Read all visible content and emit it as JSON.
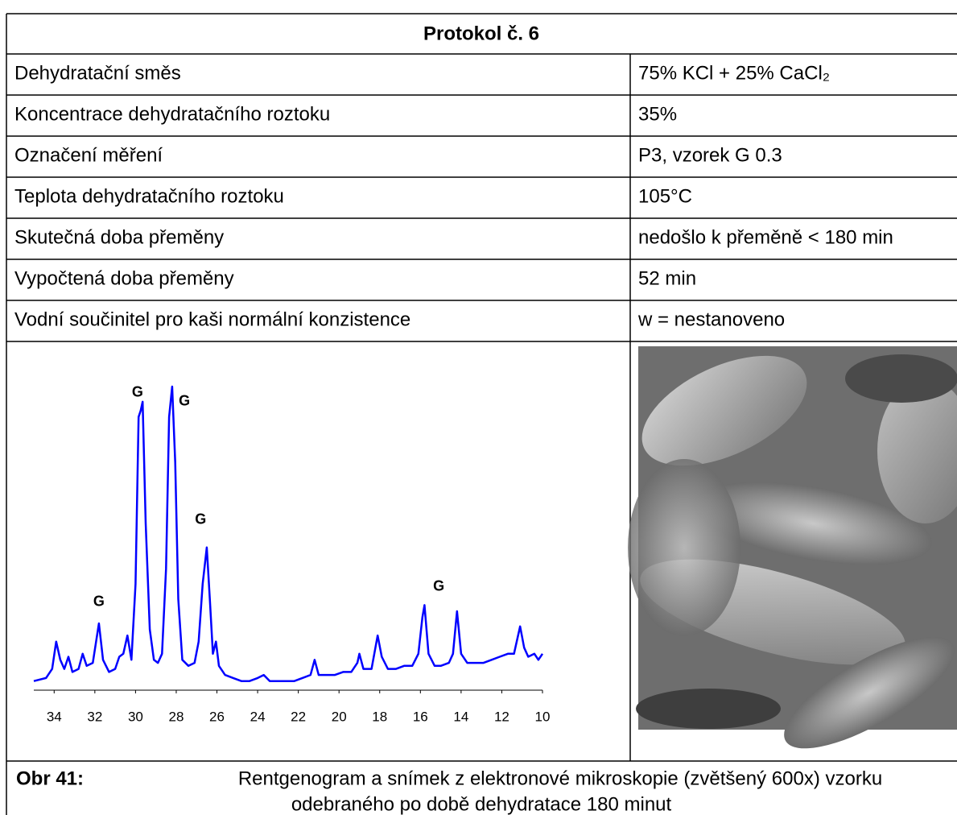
{
  "header": {
    "title": "Protokol č. 6"
  },
  "table": {
    "rows": [
      [
        "Dehydratační směs",
        "75% KCl + 25% CaCl₂"
      ],
      [
        "Koncentrace dehydratačního roztoku",
        "35%"
      ],
      [
        "Označení měření",
        "P3, vzorek G 0.3"
      ],
      [
        "Teplota dehydratačního roztoku",
        "105°C"
      ],
      [
        "Skutečná doba přeměny",
        "nedošlo k přeměně < 180 min"
      ],
      [
        "Vypočtená doba přeměny",
        "52 min"
      ],
      [
        "Vodní součinitel pro kaši normální konzistence",
        "w = nestanoveno"
      ]
    ]
  },
  "chart": {
    "type": "line",
    "color": "#0000ff",
    "x": [
      35.0,
      34.4,
      34.1,
      33.9,
      33.7,
      33.5,
      33.3,
      33.1,
      32.8,
      32.6,
      32.4,
      32.1,
      31.8,
      31.6,
      31.3,
      31.0,
      30.8,
      30.6,
      30.4,
      30.2,
      30.0,
      29.85,
      29.75,
      29.65,
      29.5,
      29.3,
      29.1,
      28.9,
      28.7,
      28.5,
      28.35,
      28.2,
      28.05,
      27.9,
      27.7,
      27.4,
      27.1,
      26.9,
      26.7,
      26.5,
      26.35,
      26.2,
      26.05,
      25.9,
      25.6,
      25.2,
      24.8,
      24.4,
      24.0,
      23.7,
      23.4,
      23.0,
      22.6,
      22.2,
      21.8,
      21.4,
      21.2,
      21.0,
      20.6,
      20.2,
      19.8,
      19.4,
      19.1,
      19.0,
      18.8,
      18.4,
      18.1,
      17.9,
      17.6,
      17.2,
      16.8,
      16.4,
      16.1,
      15.9,
      15.8,
      15.6,
      15.3,
      15.0,
      14.6,
      14.4,
      14.2,
      14.0,
      13.7,
      13.3,
      12.9,
      12.5,
      12.1,
      11.7,
      11.4,
      11.1,
      10.9,
      10.7,
      10.4,
      10.2,
      10.0
    ],
    "values": [
      3,
      4,
      7,
      16,
      10,
      7,
      11,
      6,
      7,
      12,
      8,
      9,
      22,
      10,
      6,
      7,
      11,
      12,
      18,
      10,
      35,
      90,
      92,
      95,
      55,
      20,
      10,
      9,
      12,
      40,
      90,
      100,
      75,
      30,
      10,
      8,
      9,
      16,
      35,
      47,
      30,
      12,
      16,
      8,
      5,
      4,
      3,
      3,
      4,
      5,
      3,
      3,
      3,
      3,
      4,
      5,
      10,
      5,
      5,
      5,
      6,
      6,
      9,
      12,
      7,
      7,
      18,
      11,
      7,
      7,
      8,
      8,
      12,
      24,
      28,
      12,
      8,
      8,
      9,
      12,
      26,
      12,
      9,
      9,
      9,
      10,
      11,
      12,
      12,
      21,
      14,
      11,
      12,
      10,
      12
    ],
    "xlim": [
      35,
      10
    ],
    "ylim": [
      0,
      100
    ],
    "xticks": [
      34,
      32,
      30,
      28,
      26,
      24,
      22,
      20,
      18,
      16,
      14,
      12,
      10
    ],
    "annotations": [
      {
        "text": "G",
        "x": 31.8,
        "y": 29
      },
      {
        "text": "G",
        "x": 29.9,
        "y": 98
      },
      {
        "text": "G",
        "x": 27.6,
        "y": 95
      },
      {
        "text": "G",
        "x": 26.8,
        "y": 56
      },
      {
        "text": "G",
        "x": 15.1,
        "y": 34
      }
    ]
  },
  "caption": {
    "label": "Obr 41:",
    "lines": [
      "Rentgenogram a snímek z elektronové mikroskopie (zvětšený 600x) vzorku",
      "odebraného po době dehydratace 180 minut"
    ]
  }
}
